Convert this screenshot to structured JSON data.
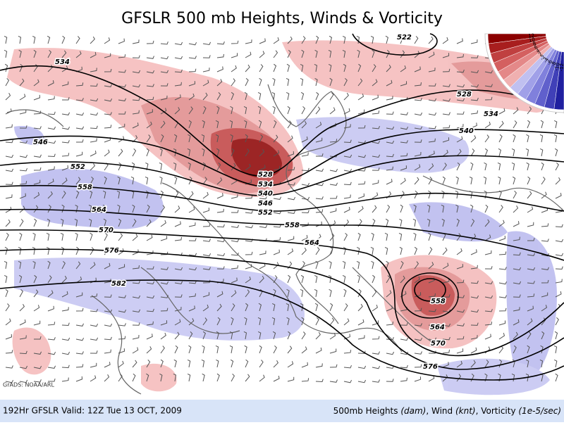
{
  "title": "GFSLR 500 mb Heights, Winds & Vorticity",
  "credit": "GrADS: NOAA/ARL",
  "footer": {
    "left": "192Hr GFSLR Valid: 12Z Tue 13 OCT, 2009",
    "right": [
      "500mb Heights ",
      "(dam)",
      ", Wind ",
      "(knt)",
      ", Vorticity ",
      "(1e-5/sec)"
    ]
  },
  "contours": [
    534,
    546,
    552,
    558,
    564,
    570,
    576,
    582,
    522,
    528,
    534,
    540,
    528,
    534,
    540,
    546,
    552,
    558,
    564,
    558,
    564,
    570,
    576
  ],
  "legend": {
    "labels": [
      "12",
      "10",
      "8",
      "6",
      "4",
      "2",
      "-2",
      "-4",
      "-6",
      "-8",
      "-10",
      "-12"
    ],
    "colors": [
      "#8b0000",
      "#a81e1e",
      "#c04040",
      "#d46060",
      "#e48888",
      "#f0b0b0",
      "#c0c0f0",
      "#a0a0e8",
      "#8080dc",
      "#6060cc",
      "#4040b8",
      "#2020a0"
    ]
  }
}
